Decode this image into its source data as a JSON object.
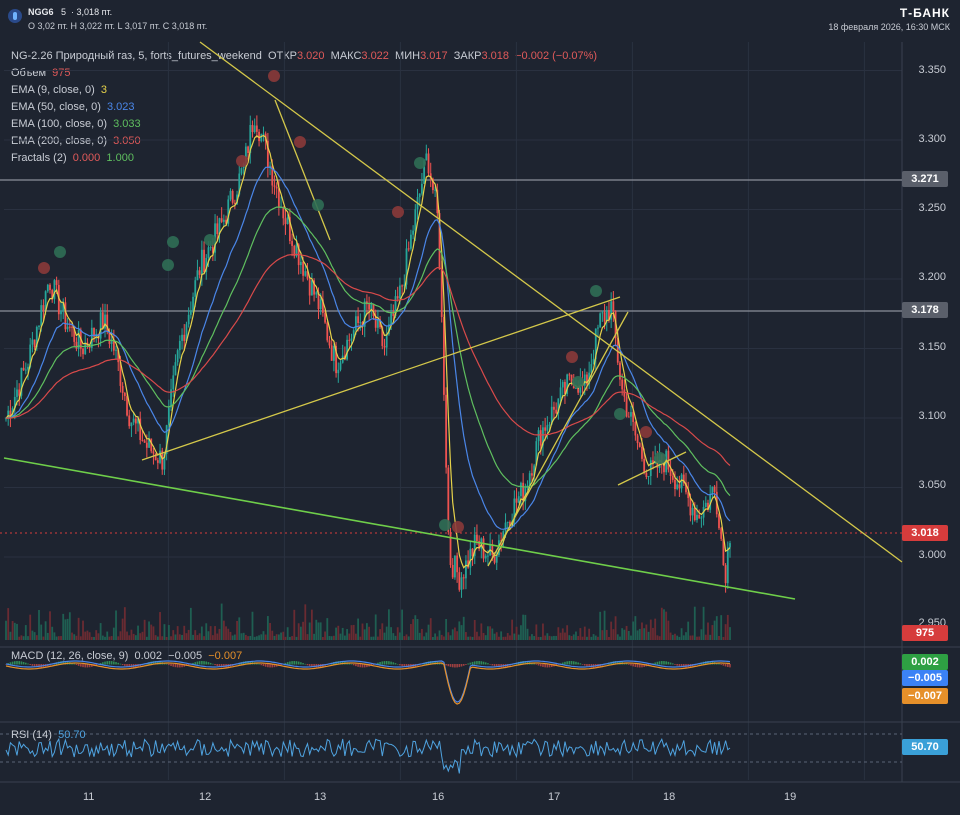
{
  "header": {
    "ticker": "NGG6",
    "interval": "5",
    "price": "3,018 пт.",
    "ohlc": "O 3,02 пт.   H 3,022 пт.   L 3,017 пт.   C 3,018 пт.",
    "brand": "Т-БАНК",
    "datetime": "18 февраля 2026, 16:30 МСК"
  },
  "legend": {
    "symbol_line": "NG-2.26 Природный газ, 5, forts_futures_weekend",
    "open_label": "ОТКР",
    "open_value": "3.020",
    "high_label": "МАКС",
    "high_value": "3.022",
    "low_label": "МИН",
    "low_value": "3.017",
    "close_label": "ЗАКР",
    "close_value": "3.018",
    "change": "−0.002 (−0.07%)",
    "volume_label": "Объем",
    "volume_value": "975",
    "ema9_label": "EMA (9, close, 0)",
    "ema9_value": "3",
    "ema50_label": "EMA (50, close, 0)",
    "ema50_value": "3.023",
    "ema100_label": "EMA (100, close, 0)",
    "ema100_value": "3.033",
    "ema200_label": "EMA (200, close, 0)",
    "ema200_value": "3.050",
    "fractals_label": "Fractals (2)",
    "fractals_v1": "0.000",
    "fractals_v2": "1.000",
    "macd_label": "MACD (12, 26, close, 9)",
    "macd_v1": "0.002",
    "macd_v2": "−0.005",
    "macd_v3": "−0.007",
    "rsi_label": "RSI (14)",
    "rsi_value": "50.70"
  },
  "colors": {
    "bg": "#1e2430",
    "up": "#26a69a",
    "down": "#ef5350",
    "ema9": "#e6d24a",
    "ema50": "#4a86e8",
    "ema100": "#5fbf5f",
    "ema200": "#d84a4a",
    "trendline": "#d4c84a",
    "support": "#6fcf4a",
    "rsi": "#4fa3e0"
  },
  "chart_data": {
    "type": "candlestick",
    "title": "NG-2.26 Природный газ, 5, forts_futures_weekend",
    "y_ticks": [
      "3.350",
      "3.300",
      "3.250",
      "3.200",
      "3.150",
      "3.100",
      "3.050",
      "3.000",
      "2.950"
    ],
    "ylim": [
      2.95,
      3.36
    ],
    "x_ticks": [
      "11",
      "12",
      "13",
      "16",
      "17",
      "18",
      "19"
    ],
    "price_tags": {
      "level_high": "3.271",
      "level_mid": "3.178",
      "last": "3.018",
      "volume": "975"
    },
    "macd_tags": [
      "0.002",
      "−0.005",
      "−0.007"
    ],
    "rsi_tag": "50.70",
    "path": [
      [
        11,
        3.1
      ],
      [
        11.2,
        3.14
      ],
      [
        11.4,
        3.2
      ],
      [
        11.55,
        3.17
      ],
      [
        11.7,
        3.15
      ],
      [
        11.9,
        3.17
      ],
      [
        12.0,
        3.15
      ],
      [
        12.15,
        3.1
      ],
      [
        12.3,
        3.08
      ],
      [
        12.45,
        3.07
      ],
      [
        12.6,
        3.15
      ],
      [
        12.8,
        3.21
      ],
      [
        13.0,
        3.24
      ],
      [
        13.2,
        3.28
      ],
      [
        13.3,
        3.32
      ],
      [
        13.45,
        3.28
      ],
      [
        13.6,
        3.24
      ],
      [
        13.75,
        3.21
      ],
      [
        13.9,
        3.18
      ],
      [
        14.05,
        3.14
      ],
      [
        14.2,
        3.16
      ],
      [
        14.35,
        3.18
      ],
      [
        14.5,
        3.15
      ],
      [
        14.65,
        3.19
      ],
      [
        14.8,
        3.25
      ],
      [
        14.9,
        3.29
      ],
      [
        15.0,
        3.24
      ],
      [
        15.05,
        3.13
      ],
      [
        15.1,
        3.0
      ],
      [
        15.2,
        2.985
      ],
      [
        15.35,
        3.01
      ],
      [
        15.5,
        3.0
      ],
      [
        15.65,
        3.03
      ],
      [
        15.8,
        3.05
      ],
      [
        15.95,
        3.09
      ],
      [
        16.1,
        3.11
      ],
      [
        16.25,
        3.13
      ],
      [
        16.35,
        3.12
      ],
      [
        16.5,
        3.17
      ],
      [
        16.6,
        3.18
      ],
      [
        16.7,
        3.12
      ],
      [
        16.85,
        3.08
      ],
      [
        16.95,
        3.06
      ],
      [
        17.1,
        3.07
      ],
      [
        17.25,
        3.05
      ],
      [
        17.4,
        3.03
      ],
      [
        17.5,
        3.04
      ],
      [
        17.55,
        3.05
      ],
      [
        17.6,
        3.03
      ],
      [
        17.65,
        2.985
      ],
      [
        17.7,
        3.018
      ]
    ]
  }
}
